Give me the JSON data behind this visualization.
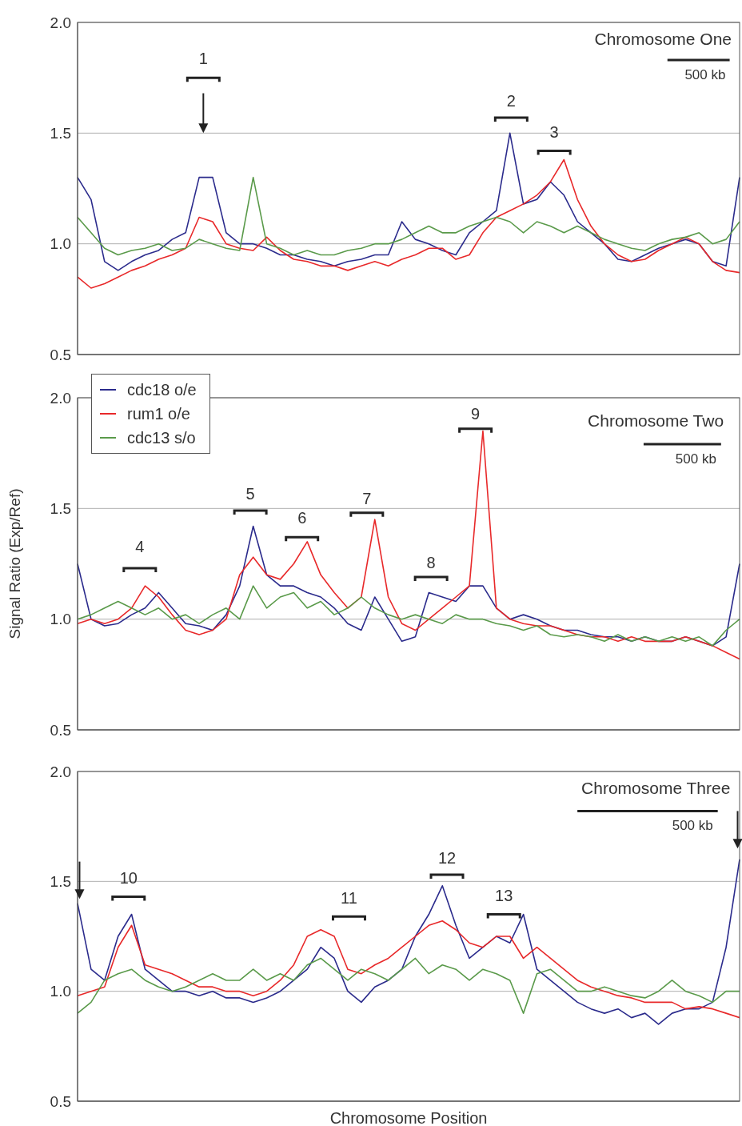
{
  "chart_data": [
    {
      "type": "line",
      "title": "Chromosome One",
      "categories": [
        null,
        null,
        null,
        null,
        null,
        null,
        null,
        null,
        null,
        null,
        null,
        null,
        null,
        null,
        null,
        null,
        null,
        null,
        null,
        null,
        null,
        null,
        null,
        null,
        null,
        null,
        null,
        null,
        null,
        null,
        null,
        null,
        null,
        null,
        null,
        null,
        null,
        null,
        null,
        null,
        null,
        null,
        null,
        null,
        null,
        null,
        null,
        null,
        null,
        null
      ],
      "series": [
        {
          "color": "#2b2b8c",
          "values": [
            1.3,
            1.2,
            0.92,
            0.88,
            0.92,
            0.95,
            0.97,
            1.02,
            1.05,
            1.3,
            1.3,
            1.05,
            1.0,
            1.0,
            0.98,
            0.95,
            0.95,
            0.93,
            0.92,
            0.9,
            0.92,
            0.93,
            0.95,
            0.95,
            1.1,
            1.02,
            1.0,
            0.97,
            0.95,
            1.05,
            1.1,
            1.15,
            1.5,
            1.18,
            1.2,
            1.28,
            1.22,
            1.1,
            1.05,
            1.0,
            0.93,
            0.92,
            0.95,
            0.98,
            1.0,
            1.02,
            1.0,
            0.92,
            0.9,
            1.3
          ]
        },
        {
          "color": "#e8292a",
          "values": [
            0.85,
            0.8,
            0.82,
            0.85,
            0.88,
            0.9,
            0.93,
            0.95,
            0.98,
            1.12,
            1.1,
            1.0,
            0.98,
            0.97,
            1.03,
            0.97,
            0.93,
            0.92,
            0.9,
            0.9,
            0.88,
            0.9,
            0.92,
            0.9,
            0.93,
            0.95,
            0.98,
            0.98,
            0.93,
            0.95,
            1.05,
            1.12,
            1.15,
            1.18,
            1.22,
            1.28,
            1.38,
            1.2,
            1.08,
            1.0,
            0.95,
            0.92,
            0.93,
            0.97,
            1.0,
            1.03,
            1.0,
            0.92,
            0.88,
            0.87
          ]
        },
        {
          "color": "#5a9a4a",
          "values": [
            1.12,
            1.05,
            0.98,
            0.95,
            0.97,
            0.98,
            1.0,
            0.97,
            0.98,
            1.02,
            1.0,
            0.98,
            0.97,
            1.3,
            1.0,
            0.98,
            0.95,
            0.97,
            0.95,
            0.95,
            0.97,
            0.98,
            1.0,
            1.0,
            1.02,
            1.05,
            1.08,
            1.05,
            1.05,
            1.08,
            1.1,
            1.12,
            1.1,
            1.05,
            1.1,
            1.08,
            1.05,
            1.08,
            1.05,
            1.02,
            1.0,
            0.98,
            0.97,
            1.0,
            1.02,
            1.03,
            1.05,
            1.0,
            1.02,
            1.1
          ]
        }
      ],
      "ylim": [
        0.5,
        2.0
      ],
      "yticks": [
        {
          "value": 0.5,
          "label": "0.5"
        },
        {
          "value": 1,
          "label": "1.0"
        },
        {
          "value": 1.5,
          "label": "1.5"
        },
        {
          "value": 2,
          "label": "2.0"
        }
      ],
      "grid": "y",
      "tick_labels": "y",
      "marker": "none",
      "line_style": "solid",
      "annotations": [
        "1",
        "2",
        "3",
        "500 kb"
      ]
    },
    {
      "type": "line",
      "title": "Chromosome Two",
      "ylabel": "Signal Ratio (Exp/Ref)",
      "categories": [
        null,
        null,
        null,
        null,
        null,
        null,
        null,
        null,
        null,
        null,
        null,
        null,
        null,
        null,
        null,
        null,
        null,
        null,
        null,
        null,
        null,
        null,
        null,
        null,
        null,
        null,
        null,
        null,
        null,
        null,
        null,
        null,
        null,
        null,
        null,
        null,
        null,
        null,
        null,
        null,
        null,
        null,
        null,
        null,
        null,
        null,
        null,
        null,
        null,
        null
      ],
      "series": [
        {
          "name": "cdc18 o/e",
          "color": "#2b2b8c",
          "values": [
            1.25,
            1.0,
            0.97,
            0.98,
            1.02,
            1.05,
            1.12,
            1.05,
            0.98,
            0.97,
            0.95,
            1.02,
            1.15,
            1.42,
            1.2,
            1.15,
            1.15,
            1.12,
            1.1,
            1.05,
            0.98,
            0.95,
            1.1,
            1.0,
            0.9,
            0.92,
            1.12,
            1.1,
            1.08,
            1.15,
            1.15,
            1.05,
            1.0,
            1.02,
            1.0,
            0.97,
            0.95,
            0.95,
            0.93,
            0.92,
            0.92,
            0.9,
            0.92,
            0.9,
            0.9,
            0.92,
            0.9,
            0.88,
            0.92,
            1.25
          ]
        },
        {
          "name": "rum1 o/e",
          "color": "#e8292a",
          "values": [
            0.98,
            1.0,
            0.98,
            1.0,
            1.05,
            1.15,
            1.1,
            1.02,
            0.95,
            0.93,
            0.95,
            1.0,
            1.2,
            1.28,
            1.2,
            1.18,
            1.25,
            1.35,
            1.2,
            1.12,
            1.05,
            1.1,
            1.45,
            1.1,
            0.98,
            0.95,
            1.0,
            1.05,
            1.1,
            1.15,
            1.85,
            1.05,
            1.0,
            0.98,
            0.97,
            0.97,
            0.95,
            0.93,
            0.92,
            0.92,
            0.9,
            0.92,
            0.9,
            0.9,
            0.9,
            0.92,
            0.9,
            0.88,
            0.85,
            0.82
          ]
        },
        {
          "name": "cdc13 s/o",
          "color": "#5a9a4a",
          "values": [
            1.0,
            1.02,
            1.05,
            1.08,
            1.05,
            1.02,
            1.05,
            1.0,
            1.02,
            0.98,
            1.02,
            1.05,
            1.0,
            1.15,
            1.05,
            1.1,
            1.12,
            1.05,
            1.08,
            1.02,
            1.05,
            1.1,
            1.05,
            1.02,
            1.0,
            1.02,
            1.0,
            0.98,
            1.02,
            1.0,
            1.0,
            0.98,
            0.97,
            0.95,
            0.97,
            0.93,
            0.92,
            0.93,
            0.92,
            0.9,
            0.93,
            0.9,
            0.92,
            0.9,
            0.92,
            0.9,
            0.92,
            0.88,
            0.95,
            1.0
          ]
        }
      ],
      "ylim": [
        0.5,
        2.0
      ],
      "yticks": [
        {
          "value": 0.5,
          "label": "0.5"
        },
        {
          "value": 1,
          "label": "1.0"
        },
        {
          "value": 1.5,
          "label": "1.5"
        },
        {
          "value": 2,
          "label": "2.0"
        }
      ],
      "grid": "y",
      "tick_labels": "y",
      "legend": "top left",
      "marker": "none",
      "line_style": "solid",
      "annotations": [
        "4",
        "5",
        "6",
        "7",
        "8",
        "9",
        "500 kb"
      ]
    },
    {
      "type": "line",
      "title": "Chromosome Three",
      "xlabel": "Chromosome Position",
      "categories": [
        null,
        null,
        null,
        null,
        null,
        null,
        null,
        null,
        null,
        null,
        null,
        null,
        null,
        null,
        null,
        null,
        null,
        null,
        null,
        null,
        null,
        null,
        null,
        null,
        null,
        null,
        null,
        null,
        null,
        null,
        null,
        null,
        null,
        null,
        null,
        null,
        null,
        null,
        null,
        null,
        null,
        null,
        null,
        null,
        null,
        null,
        null,
        null,
        null,
        null
      ],
      "series": [
        {
          "color": "#2b2b8c",
          "values": [
            1.4,
            1.1,
            1.05,
            1.25,
            1.35,
            1.1,
            1.05,
            1.0,
            1.0,
            0.98,
            1.0,
            0.97,
            0.97,
            0.95,
            0.97,
            1.0,
            1.05,
            1.1,
            1.2,
            1.15,
            1.0,
            0.95,
            1.02,
            1.05,
            1.1,
            1.25,
            1.35,
            1.48,
            1.3,
            1.15,
            1.2,
            1.25,
            1.22,
            1.35,
            1.1,
            1.05,
            1.0,
            0.95,
            0.92,
            0.9,
            0.92,
            0.88,
            0.9,
            0.85,
            0.9,
            0.92,
            0.92,
            0.95,
            1.2,
            1.6
          ]
        },
        {
          "color": "#e8292a",
          "values": [
            0.98,
            1.0,
            1.02,
            1.2,
            1.3,
            1.12,
            1.1,
            1.08,
            1.05,
            1.02,
            1.02,
            1.0,
            1.0,
            0.98,
            1.0,
            1.05,
            1.12,
            1.25,
            1.28,
            1.25,
            1.1,
            1.08,
            1.12,
            1.15,
            1.2,
            1.25,
            1.3,
            1.32,
            1.28,
            1.22,
            1.2,
            1.25,
            1.25,
            1.15,
            1.2,
            1.15,
            1.1,
            1.05,
            1.02,
            1.0,
            0.98,
            0.97,
            0.95,
            0.95,
            0.95,
            0.92,
            0.93,
            0.92,
            0.9,
            0.88
          ]
        },
        {
          "color": "#5a9a4a",
          "values": [
            0.9,
            0.95,
            1.05,
            1.08,
            1.1,
            1.05,
            1.02,
            1.0,
            1.02,
            1.05,
            1.08,
            1.05,
            1.05,
            1.1,
            1.05,
            1.08,
            1.05,
            1.12,
            1.15,
            1.1,
            1.05,
            1.1,
            1.08,
            1.05,
            1.1,
            1.15,
            1.08,
            1.12,
            1.1,
            1.05,
            1.1,
            1.08,
            1.05,
            0.9,
            1.08,
            1.1,
            1.05,
            1.0,
            1.0,
            1.02,
            1.0,
            0.98,
            0.97,
            1.0,
            1.05,
            1.0,
            0.98,
            0.95,
            1.0,
            1.0
          ]
        }
      ],
      "ylim": [
        0.5,
        2.0
      ],
      "yticks": [
        {
          "value": 0.5,
          "label": "0.5"
        },
        {
          "value": 1,
          "label": "1.0"
        },
        {
          "value": 1.5,
          "label": "1.5"
        },
        {
          "value": 2,
          "label": "2.0"
        }
      ],
      "grid": "y",
      "tick_labels": "y",
      "marker": "none",
      "line_style": "solid",
      "annotations": [
        "10",
        "11",
        "12",
        "13",
        "500 kb"
      ]
    }
  ]
}
